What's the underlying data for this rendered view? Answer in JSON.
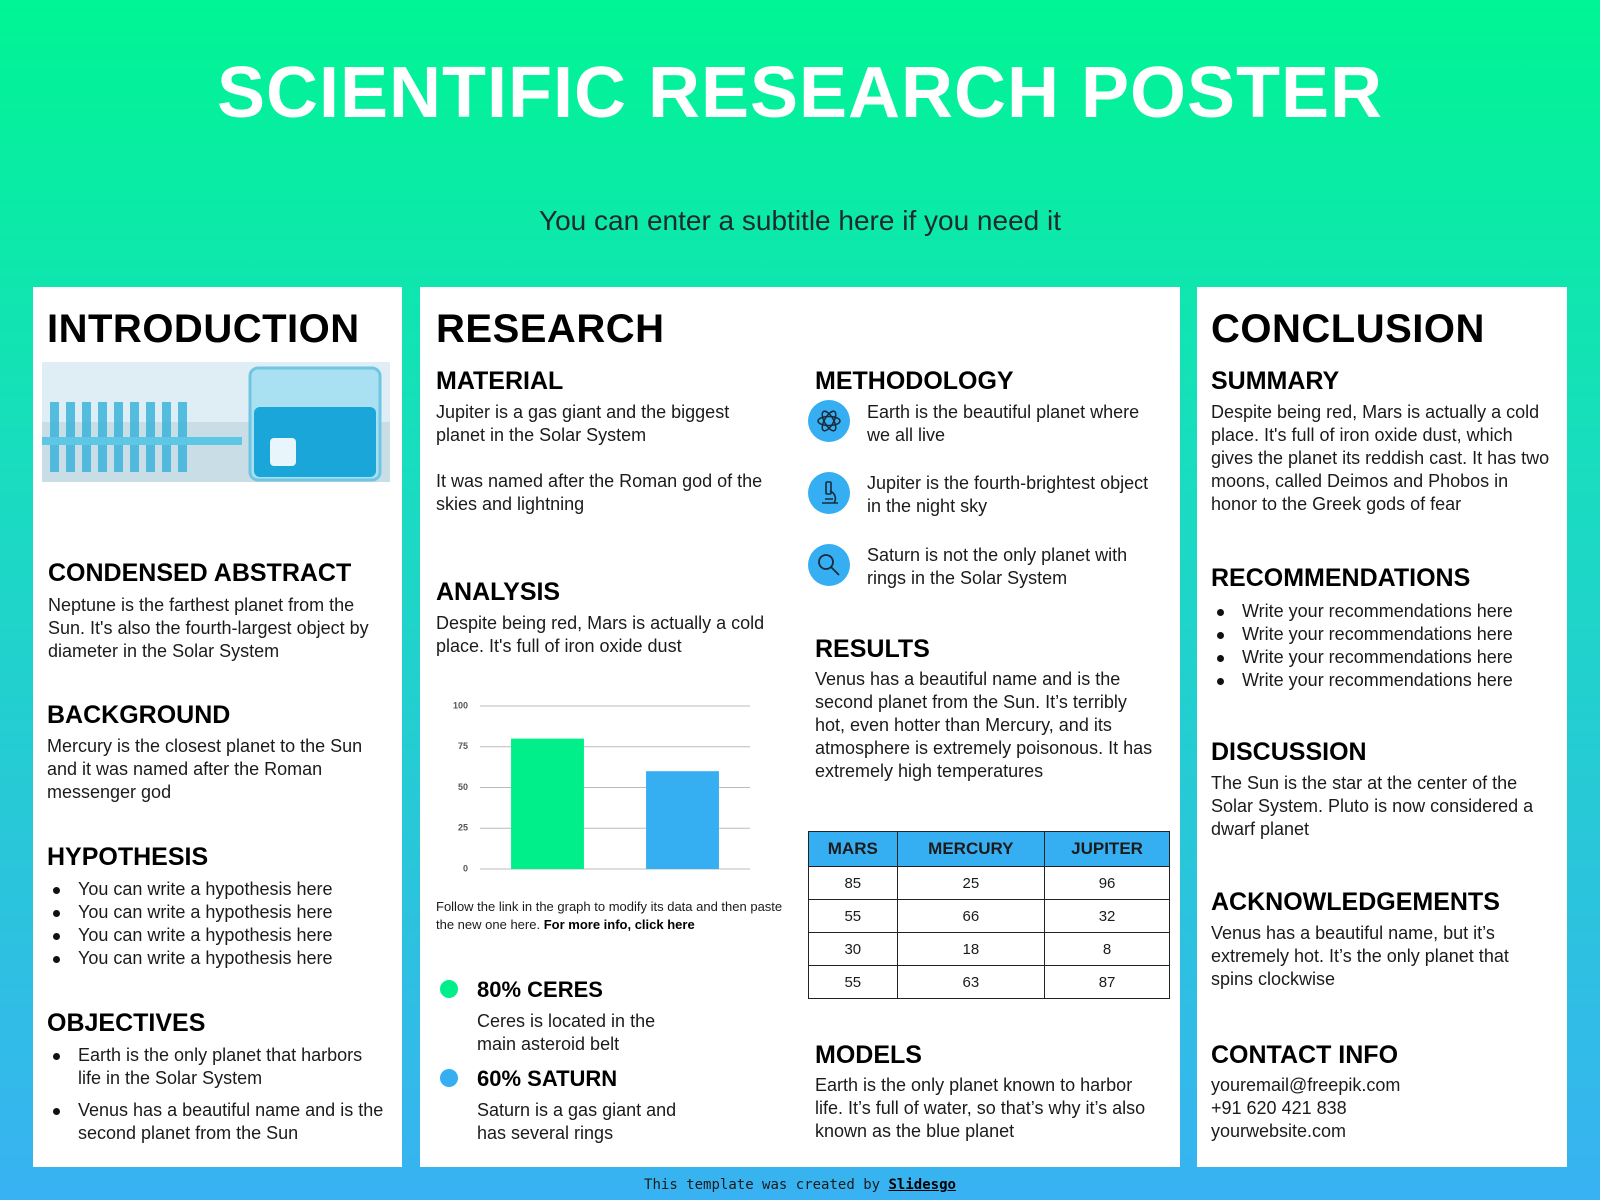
{
  "header": {
    "title": "SCIENTIFIC RESEARCH POSTER",
    "subtitle": "You can enter a subtitle here if you need it"
  },
  "introduction": {
    "heading": "INTRODUCTION",
    "abstract": {
      "heading": "CONDENSED ABSTRACT",
      "text": "Neptune is the farthest planet from the Sun. It's also the fourth-largest object by diameter in the Solar System"
    },
    "background": {
      "heading": "BACKGROUND",
      "text": "Mercury is the closest planet to the Sun and it was named after the Roman messenger god"
    },
    "hypothesis": {
      "heading": "HYPOTHESIS",
      "items": [
        "You can write a hypothesis here",
        "You can write a hypothesis here",
        "You can write a hypothesis here",
        "You can write a hypothesis here"
      ]
    },
    "objectives": {
      "heading": "OBJECTIVES",
      "items": [
        "Earth is the only planet that harbors life in the Solar System",
        "Venus has a beautiful name and is the second planet from the Sun"
      ]
    }
  },
  "research": {
    "heading": "RESEARCH",
    "material": {
      "heading": "MATERIAL",
      "paragraphs": [
        "Jupiter is a gas giant and the biggest planet in the Solar System",
        "It was named after the Roman god of the skies and lightning"
      ]
    },
    "analysis": {
      "heading": "ANALYSIS",
      "text": "Despite being red, Mars is actually a cold place. It's full of iron oxide dust",
      "chart": {
        "type": "bar",
        "values": [
          80,
          60
        ],
        "colors": [
          "#00ef8b",
          "#36aef2"
        ],
        "ylim": [
          0,
          100
        ],
        "yticks": [
          0,
          25,
          50,
          75,
          100
        ],
        "grid": true
      },
      "caption": "Follow the link in the graph to modify its data and then paste the new one here.",
      "caption_link": "For more info, click here"
    },
    "stats": [
      {
        "title": "80% CERES",
        "text": "Ceres is located in the main asteroid belt"
      },
      {
        "title": "60% SATURN",
        "text": "Saturn is a gas giant and has several rings"
      }
    ],
    "methodology": {
      "heading": "METHODOLOGY",
      "items": [
        "Earth is the beautiful planet where we all live",
        "Jupiter is the fourth-brightest object in the night sky",
        "Saturn is not the only planet with rings in the Solar System"
      ]
    },
    "results": {
      "heading": "RESULTS",
      "text": "Venus has a beautiful name and is the second planet from the Sun. It’s terribly hot, even hotter than Mercury, and its atmosphere is extremely poisonous. It has extremely high temperatures"
    },
    "table": {
      "header": [
        "MARS",
        "MERCURY",
        "JUPITER"
      ],
      "rows": [
        [
          85,
          25,
          96
        ],
        [
          55,
          66,
          32
        ],
        [
          30,
          18,
          8
        ],
        [
          55,
          63,
          87
        ]
      ]
    },
    "models": {
      "heading": "MODELS",
      "text": "Earth is the only planet known to harbor life. It’s full of water, so that’s why it’s also known as the blue planet"
    }
  },
  "conclusion": {
    "heading": "CONCLUSION",
    "summary": {
      "heading": "SUMMARY",
      "text": "Despite being red, Mars is actually a cold place. It's full of iron oxide dust, which gives the planet its reddish cast. It has two moons, called Deimos and Phobos in honor to the Greek gods of fear"
    },
    "recommendations": {
      "heading": "RECOMMENDATIONS",
      "items": [
        "Write your recommendations here",
        "Write your recommendations here",
        "Write your recommendations here",
        "Write your recommendations here"
      ]
    },
    "discussion": {
      "heading": "DISCUSSION",
      "text": "The Sun is the star at the center of the Solar System. Pluto is now considered a dwarf planet"
    },
    "acknowledgements": {
      "heading": "ACKNOWLEDGEMENTS",
      "text": "Venus has a beautiful name, but it’s extremely hot. It’s the only planet that spins clockwise"
    },
    "contact": {
      "heading": "CONTACT INFO",
      "lines": [
        "youremail@freepik.com",
        "+91 620 421 838",
        "yourwebsite.com"
      ]
    }
  },
  "footer": {
    "text": "This template was created by",
    "link": "Slidesgo"
  }
}
